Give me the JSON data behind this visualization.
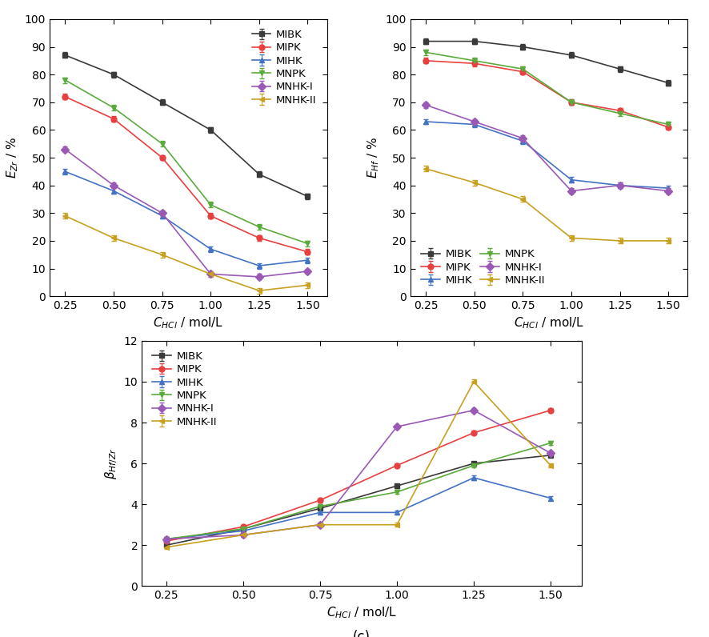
{
  "x": [
    0.25,
    0.5,
    0.75,
    1.0,
    1.25,
    1.5
  ],
  "panel_a": {
    "ylabel": "$E_{Zr}$ / %",
    "ylim": [
      0,
      100
    ],
    "yticks": [
      0,
      10,
      20,
      30,
      40,
      50,
      60,
      70,
      80,
      90,
      100
    ],
    "series": {
      "MIBK": {
        "color": "#3a3a3a",
        "marker": "s",
        "values": [
          87,
          80,
          70,
          60,
          44,
          36
        ],
        "yerr": [
          1,
          1,
          1,
          1,
          1,
          1
        ]
      },
      "MIPK": {
        "color": "#e84040",
        "marker": "o",
        "values": [
          72,
          64,
          50,
          29,
          21,
          16
        ],
        "yerr": [
          1,
          1,
          1,
          1,
          1,
          1
        ]
      },
      "MIHK": {
        "color": "#4472c4",
        "marker": "^",
        "values": [
          45,
          38,
          29,
          17,
          11,
          13
        ],
        "yerr": [
          1,
          1,
          1,
          1,
          1,
          1
        ]
      },
      "MNPK": {
        "color": "#5aab3c",
        "marker": "v",
        "values": [
          78,
          68,
          55,
          33,
          25,
          19
        ],
        "yerr": [
          1,
          1,
          1,
          1,
          1,
          1
        ]
      },
      "MNHK-I": {
        "color": "#9b59b6",
        "marker": "D",
        "values": [
          53,
          40,
          30,
          8,
          7,
          9
        ],
        "yerr": [
          1,
          1,
          1,
          1,
          1,
          1
        ]
      },
      "MNHK-II": {
        "color": "#c8a020",
        "marker": "<",
        "values": [
          29,
          21,
          15,
          8,
          2,
          4
        ],
        "yerr": [
          1,
          1,
          1,
          1,
          1,
          1
        ]
      }
    }
  },
  "panel_b": {
    "ylabel": "$E_{Hf}$ / %",
    "ylim": [
      0,
      100
    ],
    "yticks": [
      0,
      10,
      20,
      30,
      40,
      50,
      60,
      70,
      80,
      90,
      100
    ],
    "legend_cols": 2,
    "series": {
      "MIBK": {
        "color": "#3a3a3a",
        "marker": "s",
        "values": [
          92,
          92,
          90,
          87,
          82,
          77
        ],
        "yerr": [
          1,
          1,
          1,
          1,
          1,
          1
        ]
      },
      "MIPK": {
        "color": "#e84040",
        "marker": "o",
        "values": [
          85,
          84,
          81,
          70,
          67,
          61
        ],
        "yerr": [
          1,
          1,
          1,
          1,
          1,
          1
        ]
      },
      "MIHK": {
        "color": "#4472c4",
        "marker": "^",
        "values": [
          63,
          62,
          56,
          42,
          40,
          39
        ],
        "yerr": [
          1,
          1,
          1,
          1,
          1,
          1
        ]
      },
      "MNPK": {
        "color": "#5aab3c",
        "marker": "v",
        "values": [
          88,
          85,
          82,
          70,
          66,
          62
        ],
        "yerr": [
          1,
          1,
          1,
          1,
          1,
          1
        ]
      },
      "MNHK-I": {
        "color": "#9b59b6",
        "marker": "D",
        "values": [
          69,
          63,
          57,
          38,
          40,
          38
        ],
        "yerr": [
          1,
          1,
          1,
          1,
          1,
          1
        ]
      },
      "MNHK-II": {
        "color": "#c8a020",
        "marker": "<",
        "values": [
          46,
          41,
          35,
          21,
          20,
          20
        ],
        "yerr": [
          1,
          1,
          1,
          1,
          1,
          1
        ]
      }
    }
  },
  "panel_c": {
    "ylabel": "$\\beta_{Hf/Zr}$",
    "ylim": [
      0,
      12
    ],
    "yticks": [
      0,
      2,
      4,
      6,
      8,
      10,
      12
    ],
    "series": {
      "MIBK": {
        "color": "#3a3a3a",
        "marker": "s",
        "values": [
          2.0,
          2.8,
          3.8,
          4.9,
          6.0,
          6.4
        ],
        "yerr": [
          0.1,
          0.1,
          0.1,
          0.1,
          0.1,
          0.1
        ]
      },
      "MIPK": {
        "color": "#e84040",
        "marker": "o",
        "values": [
          2.2,
          2.9,
          4.2,
          5.9,
          7.5,
          8.6
        ],
        "yerr": [
          0.1,
          0.1,
          0.1,
          0.1,
          0.1,
          0.1
        ]
      },
      "MIHK": {
        "color": "#4472c4",
        "marker": "^",
        "values": [
          2.3,
          2.7,
          3.6,
          3.6,
          5.3,
          4.3
        ],
        "yerr": [
          0.1,
          0.1,
          0.1,
          0.1,
          0.1,
          0.1
        ]
      },
      "MNPK": {
        "color": "#5aab3c",
        "marker": "v",
        "values": [
          2.3,
          2.8,
          3.9,
          4.6,
          5.9,
          7.0
        ],
        "yerr": [
          0.1,
          0.1,
          0.1,
          0.1,
          0.1,
          0.1
        ]
      },
      "MNHK-I": {
        "color": "#9b59b6",
        "marker": "D",
        "values": [
          2.3,
          2.5,
          3.0,
          7.8,
          8.6,
          6.5
        ],
        "yerr": [
          0.1,
          0.1,
          0.1,
          0.1,
          0.1,
          0.1
        ]
      },
      "MNHK-II": {
        "color": "#c8a020",
        "marker": "<",
        "values": [
          1.9,
          2.5,
          3.0,
          3.0,
          10.0,
          5.9
        ],
        "yerr": [
          0.1,
          0.1,
          0.1,
          0.1,
          0.1,
          0.1
        ]
      }
    }
  },
  "xlabel": "$C_{HCl}$ / mol/L",
  "xticks": [
    0.25,
    0.5,
    0.75,
    1.0,
    1.25,
    1.5
  ],
  "xticklabels": [
    "0.25",
    "0.50",
    "0.75",
    "1.00",
    "1.25",
    "1.50"
  ],
  "label_fontsize": 11,
  "tick_fontsize": 10,
  "legend_fontsize": 9.5,
  "marker_size": 5,
  "line_width": 1.2,
  "capsize": 2
}
